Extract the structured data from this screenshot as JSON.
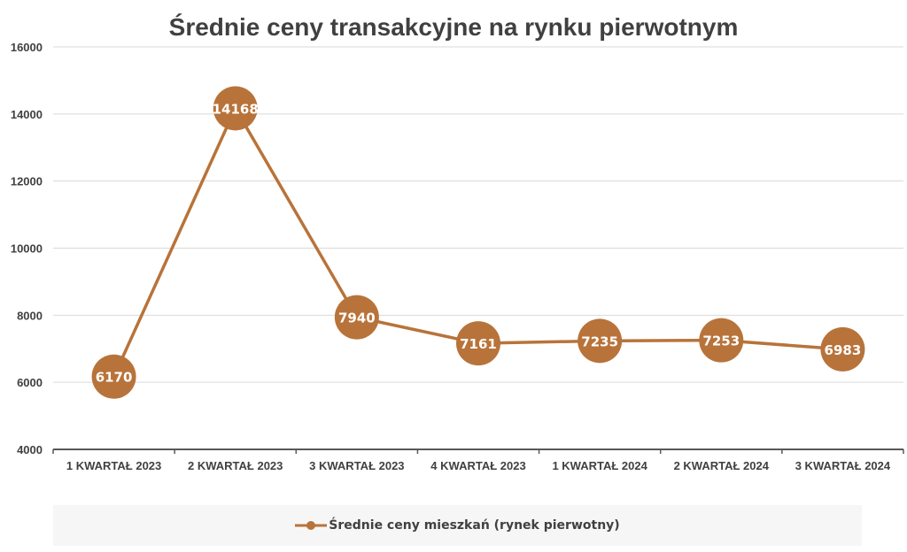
{
  "chart_data": {
    "type": "line",
    "title": "Średnie ceny transakcyjne na rynku pierwotnym",
    "categories": [
      "1 KWARTAŁ 2023",
      "2 KWARTAŁ 2023",
      "3 KWARTAŁ 2023",
      "4 KWARTAŁ 2023",
      "1 KWARTAŁ 2024",
      "2 KWARTAŁ 2024",
      "3 KWARTAŁ 2024"
    ],
    "series": [
      {
        "name": "Średnie  ceny mieszkań (rynek pierwotny)",
        "values": [
          6170,
          14168,
          7940,
          7161,
          7235,
          7253,
          6983
        ],
        "color": "#B8733A"
      }
    ],
    "ylim": [
      4000,
      16000
    ],
    "yticks": [
      4000,
      6000,
      8000,
      10000,
      12000,
      14000,
      16000
    ],
    "xlabel": "",
    "ylabel": "",
    "grid": true,
    "legend": "bottom"
  }
}
